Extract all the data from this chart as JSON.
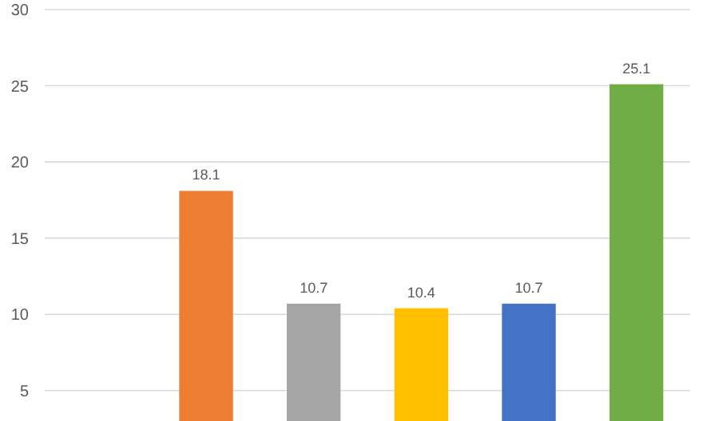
{
  "chart_data": {
    "type": "bar",
    "categories": [
      null,
      null,
      null,
      null,
      null,
      null
    ],
    "values": [
      null,
      18.1,
      10.7,
      10.4,
      10.7,
      25.1
    ],
    "colors": [
      null,
      "#ed7d31",
      "#a5a5a5",
      "#ffc000",
      "#4472c4",
      "#70ad47"
    ],
    "ylim": [
      3,
      30
    ],
    "yticks": [
      5,
      10,
      15,
      20,
      25,
      30
    ],
    "grid": "y",
    "data_labels": true
  }
}
